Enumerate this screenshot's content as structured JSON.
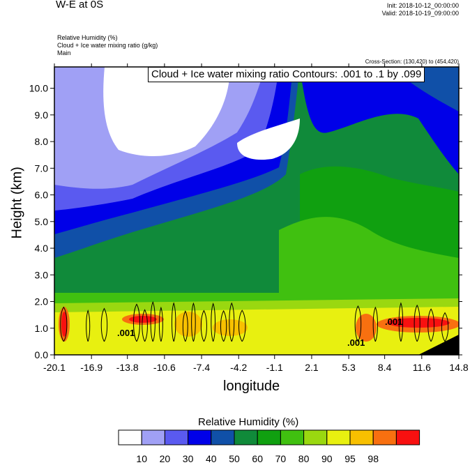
{
  "header": {
    "title": "W-E at 0S",
    "init": "Init: 2018-10-12_00:00:00",
    "valid": "Valid: 2018-10-19_09:00:00"
  },
  "fields": {
    "line1": "Relative Humidity   (%)",
    "line2": "Cloud + Ice water mixing ratio   (g/kg)",
    "line3": "Main"
  },
  "cross_section": "Cross-Section: (130,420) to (454,420)",
  "contour_title": "Cloud + Ice water mixing ratio Contours: .001 to .1 by .099",
  "contour_labels": [
    ".001",
    ".001",
    ".001"
  ],
  "chart_data": {
    "type": "heatmap",
    "xlabel": "longitude",
    "ylabel": "Height (km)",
    "x_ticks": [
      "-20.1",
      "-16.9",
      "-13.8",
      "-10.6",
      "-7.4",
      "-4.2",
      "-1.1",
      "2.1",
      "5.3",
      "8.4",
      "11.6",
      "14.8"
    ],
    "x_values": [
      -20.1,
      -16.9,
      -13.8,
      -10.6,
      -7.4,
      -4.2,
      -1.1,
      2.1,
      5.3,
      8.4,
      11.6,
      14.8
    ],
    "y_ticks": [
      "0.0",
      "1.0",
      "2.0",
      "3.0",
      "4.0",
      "5.0",
      "6.0",
      "7.0",
      "8.0",
      "9.0",
      "10.0"
    ],
    "y_values": [
      0,
      1,
      2,
      3,
      4,
      5,
      6,
      7,
      8,
      9,
      10
    ],
    "xlim": [
      -20.1,
      14.8
    ],
    "ylim": [
      0,
      10.8
    ],
    "colorbar": {
      "title": "Relative Humidity  (%)",
      "levels": [
        "10",
        "20",
        "30",
        "40",
        "50",
        "60",
        "70",
        "80",
        "90",
        "95",
        "98"
      ],
      "colors": [
        "#ffffff",
        "#a0a0f5",
        "#5a5af0",
        "#0000e8",
        "#1050a8",
        "#108a3a",
        "#10a010",
        "#40c010",
        "#9ad810",
        "#e8f010",
        "#f8c000",
        "#f87010",
        "#f81010"
      ]
    },
    "contour": {
      "field": "Cloud + Ice water mixing ratio",
      "min": 0.001,
      "max": 0.1,
      "interval": 0.099
    }
  }
}
